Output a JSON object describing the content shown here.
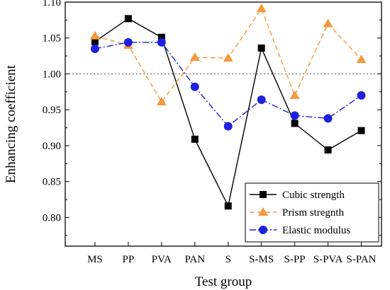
{
  "chart_data": {
    "type": "line",
    "xlabel": "Test group",
    "ylabel": "Enhancing coefficient",
    "categories": [
      "MS",
      "PP",
      "PVA",
      "PAN",
      "S",
      "S-MS",
      "S-PP",
      "S-PVA",
      "S-PAN"
    ],
    "ylim": [
      0.76,
      1.1
    ],
    "yticks": [
      "0.80",
      "0.85",
      "0.90",
      "0.95",
      "1.00",
      "1.05",
      "1.10"
    ],
    "reference_line": 1.0,
    "grid": false,
    "legend_position": "bottom-right",
    "series": [
      {
        "name": "Cubic strength",
        "values": [
          1.045,
          1.077,
          1.051,
          0.909,
          0.816,
          1.036,
          0.931,
          0.894,
          0.921
        ],
        "color": "#000000",
        "marker": "square",
        "line": "solid"
      },
      {
        "name": "Prism stregnth",
        "values": [
          1.053,
          1.04,
          0.961,
          1.023,
          1.022,
          1.091,
          0.97,
          1.07,
          1.02
        ],
        "color": "#f29a3d",
        "marker": "triangle",
        "line": "dashed"
      },
      {
        "name": "Elastic modulus",
        "values": [
          1.035,
          1.044,
          1.044,
          0.982,
          0.927,
          0.964,
          0.942,
          0.938,
          0.97
        ],
        "color": "#1f1fe0",
        "marker": "circle",
        "line": "dashdot"
      }
    ]
  }
}
